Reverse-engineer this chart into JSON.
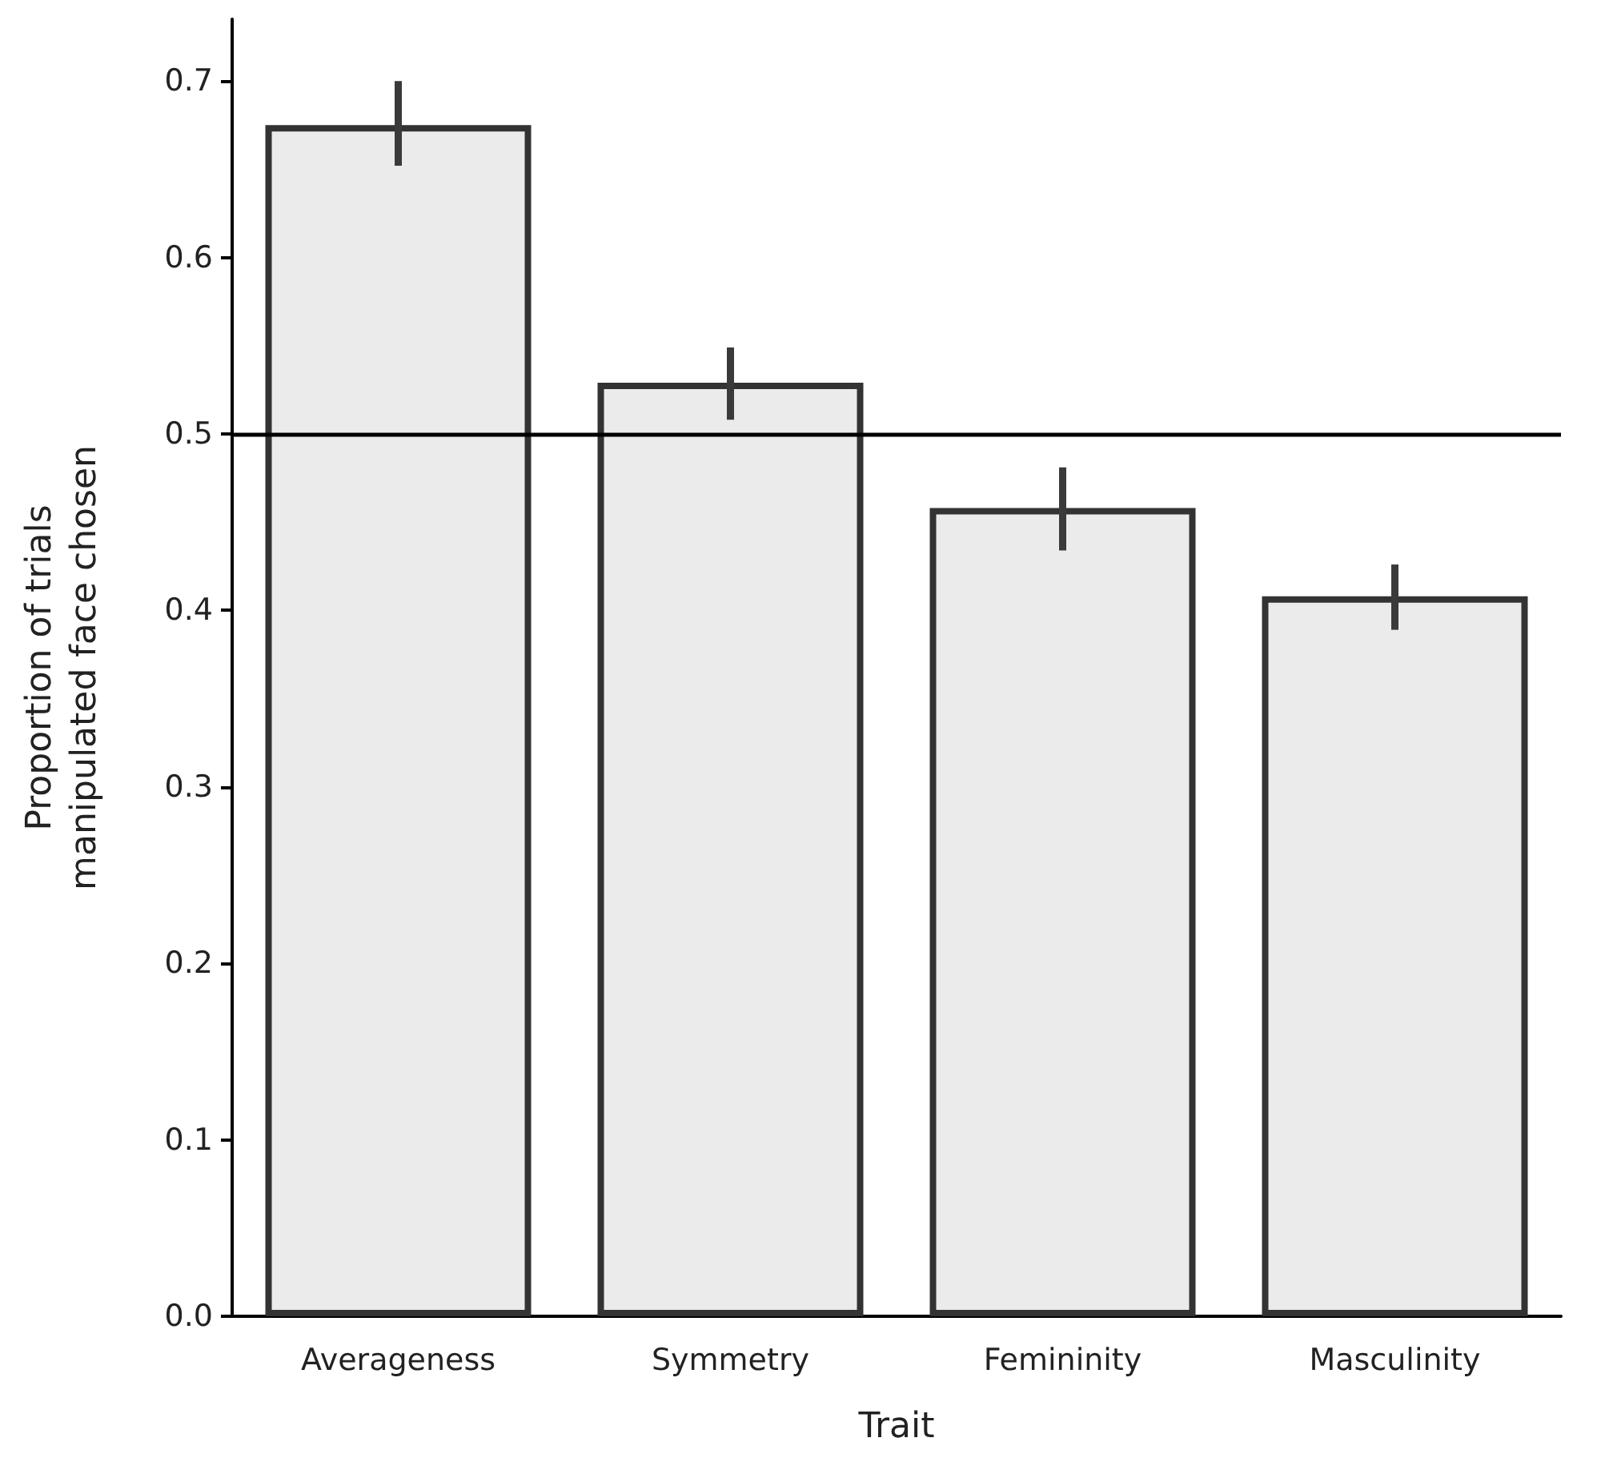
{
  "chart_data": {
    "type": "bar",
    "xlabel": "Trait",
    "ylabel": "Proportion of trials\nmanipulated face chosen",
    "categories": [
      "Averageness",
      "Symmetry",
      "Femininity",
      "Masculinity"
    ],
    "values": [
      0.675,
      0.529,
      0.458,
      0.408
    ],
    "errors": [
      [
        0.652,
        0.7
      ],
      [
        0.508,
        0.549
      ],
      [
        0.434,
        0.481
      ],
      [
        0.389,
        0.426
      ]
    ],
    "color": "#ebebeb",
    "ylim": [
      0,
      0.735
    ],
    "yticks": [
      {
        "value": 0,
        "label": "0.0"
      },
      {
        "value": 0.1,
        "label": "0.1"
      },
      {
        "value": 0.2,
        "label": "0.2"
      },
      {
        "value": 0.3,
        "label": "0.3"
      },
      {
        "value": 0.4,
        "label": "0.4"
      },
      {
        "value": 0.5,
        "label": "0.5"
      },
      {
        "value": 0.6,
        "label": "0.6"
      },
      {
        "value": 0.7,
        "label": "0.7"
      }
    ],
    "ref_lines": [
      {
        "axis": "y",
        "value": 0.5,
        "color": "#000000"
      }
    ],
    "grid": false
  }
}
